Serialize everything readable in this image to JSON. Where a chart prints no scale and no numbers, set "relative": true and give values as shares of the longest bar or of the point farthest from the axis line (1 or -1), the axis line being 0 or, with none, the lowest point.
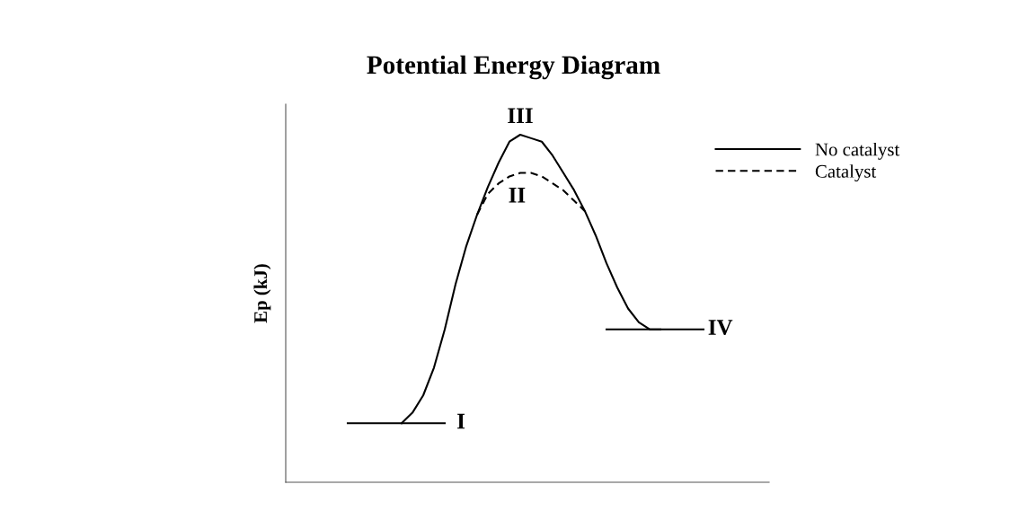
{
  "chart_data": {
    "type": "line",
    "title": "Potential Energy Diagram",
    "ylabel": "Ep (kJ)",
    "relative": true,
    "categories": [
      null,
      null,
      null,
      null,
      null,
      null,
      null,
      null,
      null,
      null,
      null,
      null,
      null,
      null,
      null,
      null,
      null,
      null,
      null,
      null,
      null,
      null,
      null,
      null,
      null,
      null,
      null,
      null,
      null,
      null,
      null,
      null,
      null,
      null
    ],
    "series": [
      {
        "name": "No catalyst",
        "color": "#000000",
        "line_style": "solid",
        "values": [
          null,
          null,
          null,
          null,
          null,
          0.17,
          0.2,
          0.25,
          0.33,
          0.44,
          0.57,
          0.68,
          0.77,
          0.85,
          0.92,
          0.98,
          1.0,
          0.99,
          0.98,
          0.94,
          0.89,
          0.84,
          0.78,
          0.71,
          0.63,
          0.56,
          0.5,
          0.46,
          0.44,
          0.44,
          null,
          null,
          null,
          null
        ]
      },
      {
        "name": "Catalyst",
        "color": "#000000",
        "line_style": "dashed",
        "values": [
          null,
          null,
          null,
          null,
          null,
          null,
          null,
          null,
          null,
          null,
          null,
          null,
          0.77,
          0.83,
          0.86,
          0.88,
          0.89,
          0.89,
          0.88,
          0.86,
          0.84,
          0.81,
          0.78,
          null,
          null,
          null,
          null,
          null,
          null,
          null,
          null,
          null,
          null,
          null
        ]
      },
      {
        "color": "#000000",
        "line_style": "solid",
        "values": [
          0.17,
          0.17,
          0.17,
          0.17,
          0.17,
          0.17,
          0.17,
          0.17,
          0.17,
          0.17,
          null,
          null,
          null,
          null,
          null,
          null,
          null,
          null,
          null,
          null,
          null,
          null,
          null,
          null,
          null,
          null,
          null,
          null,
          null,
          null,
          null,
          null,
          null,
          null
        ]
      },
      {
        "color": "#000000",
        "line_style": "solid",
        "values": [
          null,
          null,
          null,
          null,
          null,
          null,
          null,
          null,
          null,
          null,
          null,
          null,
          null,
          null,
          null,
          null,
          null,
          null,
          null,
          null,
          null,
          null,
          null,
          null,
          0.44,
          0.44,
          0.44,
          0.44,
          0.44,
          0.44,
          0.44,
          0.44,
          0.44,
          0.44
        ]
      }
    ],
    "annotations": [
      "I",
      "II",
      "III",
      "IV"
    ],
    "legend": "top right",
    "marker": "none"
  }
}
